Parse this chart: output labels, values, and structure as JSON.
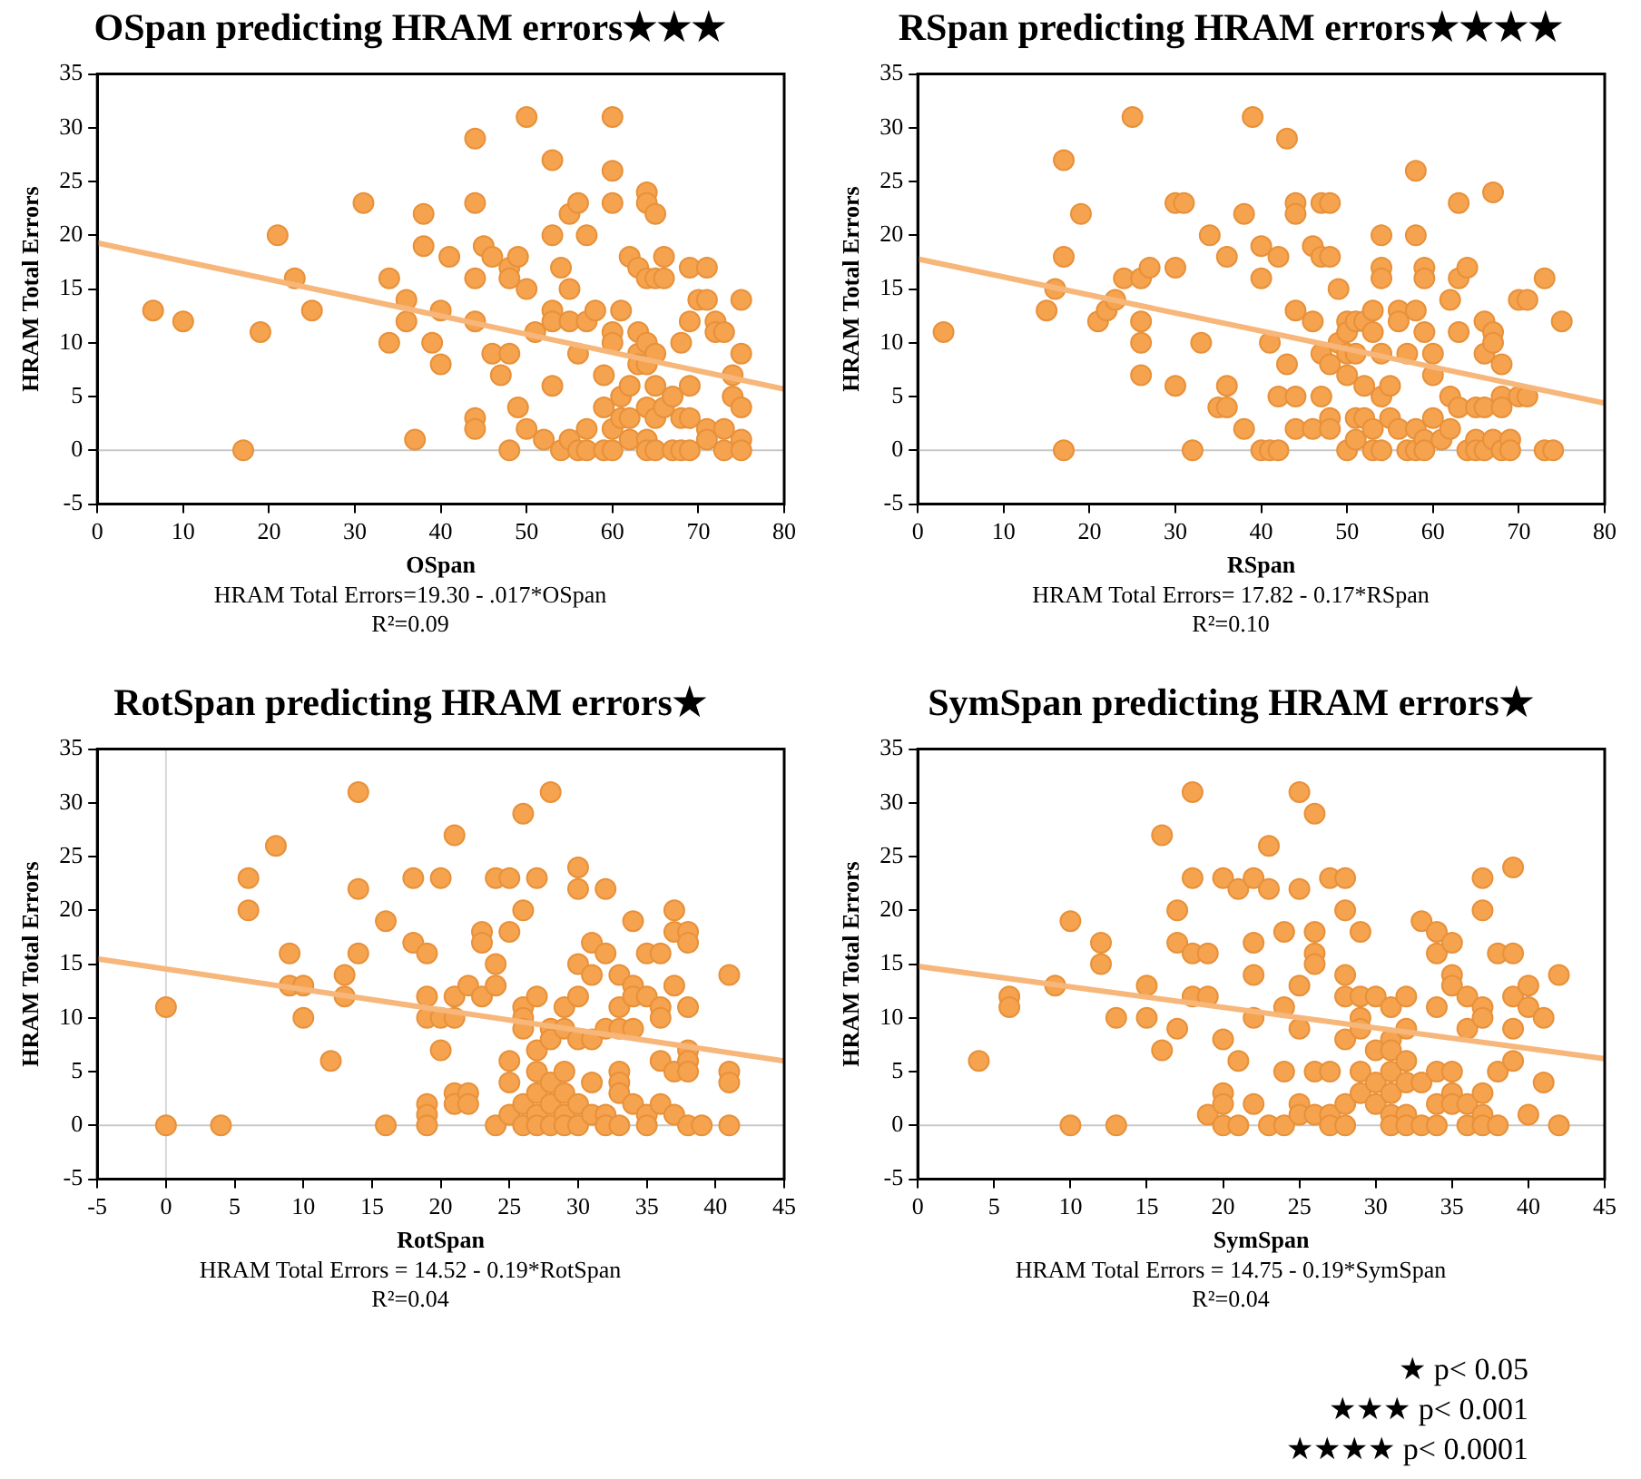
{
  "chart_data": [
    {
      "type": "scatter",
      "title": "OSpan predicting HRAM errors★★★",
      "xlabel": "OSpan",
      "ylabel": "HRAM Total Errors",
      "xlim": [
        0,
        80
      ],
      "xticks": [
        0,
        10,
        20,
        30,
        40,
        50,
        60,
        70,
        80
      ],
      "ylim": [
        -5,
        35
      ],
      "yticks": [
        -5,
        0,
        5,
        10,
        15,
        20,
        25,
        30,
        35
      ],
      "grid": false,
      "ref_lines": [
        {
          "axis": "y",
          "value": 0,
          "color": "#c8c8c8"
        }
      ],
      "annotations": [
        "HRAM Total Errors=19.30 - .017*OSpan",
        "R²=0.09"
      ],
      "series": [
        {
          "color": "#f6a34f",
          "marker": "circle",
          "x": [
            6.5,
            10,
            17,
            19,
            21,
            23,
            25,
            31,
            34,
            34,
            36,
            36,
            37,
            38,
            38,
            39,
            40,
            40,
            41,
            44,
            44,
            44,
            44,
            44,
            44,
            45,
            46,
            46,
            47,
            48,
            48,
            48,
            48,
            49,
            49,
            50,
            50,
            50,
            51,
            52,
            53,
            53,
            53,
            53,
            53,
            54,
            54,
            55,
            55,
            55,
            55,
            56,
            56,
            56,
            57,
            57,
            57,
            57,
            58,
            59,
            59,
            59,
            60,
            60,
            60,
            60,
            60,
            60,
            60,
            61,
            61,
            61,
            62,
            62,
            62,
            62,
            63,
            63,
            63,
            63,
            64,
            64,
            64,
            64,
            64,
            64,
            64,
            64,
            65,
            65,
            65,
            65,
            65,
            65,
            66,
            66,
            66,
            67,
            67,
            68,
            68,
            68,
            69,
            69,
            69,
            69,
            69,
            70,
            71,
            71,
            71,
            71,
            72,
            72,
            73,
            73,
            73,
            74,
            74,
            75,
            75,
            75,
            75,
            75
          ],
          "values": [
            13,
            12,
            0,
            11,
            20,
            16,
            13,
            23,
            16,
            10,
            14,
            12,
            1,
            22,
            19,
            10,
            13,
            8,
            18,
            29,
            23,
            16,
            12,
            3,
            2,
            19,
            18,
            9,
            7,
            17,
            16,
            9,
            0,
            18,
            4,
            31,
            15,
            2,
            11,
            1,
            27,
            20,
            13,
            12,
            6,
            17,
            0,
            22,
            15,
            12,
            1,
            23,
            9,
            0,
            20,
            12,
            2,
            0,
            13,
            7,
            4,
            0,
            31,
            26,
            23,
            11,
            10,
            2,
            0,
            13,
            5,
            3,
            18,
            6,
            3,
            1,
            17,
            11,
            9,
            8,
            24,
            23,
            16,
            10,
            8,
            4,
            1,
            0,
            22,
            16,
            9,
            6,
            3,
            0,
            18,
            16,
            4,
            5,
            0,
            10,
            3,
            0,
            17,
            12,
            6,
            3,
            0,
            14,
            17,
            14,
            2,
            1,
            12,
            11,
            11,
            2,
            0,
            7,
            5,
            14,
            9,
            4,
            1,
            0
          ]
        },
        {
          "type": "line",
          "marker": "none",
          "color": "#f7b67a",
          "x": [
            0,
            80
          ],
          "values": [
            19.3,
            5.7
          ]
        }
      ]
    },
    {
      "type": "scatter",
      "title": "RSpan predicting HRAM errors★★★★",
      "xlabel": "RSpan",
      "ylabel": "HRAM Total Errors",
      "xlim": [
        0,
        80
      ],
      "xticks": [
        0,
        10,
        20,
        30,
        40,
        50,
        60,
        70,
        80
      ],
      "ylim": [
        -5,
        35
      ],
      "yticks": [
        -5,
        0,
        5,
        10,
        15,
        20,
        25,
        30,
        35
      ],
      "grid": false,
      "ref_lines": [
        {
          "axis": "y",
          "value": 0,
          "color": "#c8c8c8"
        }
      ],
      "annotations": [
        "HRAM Total Errors= 17.82 - 0.17*RSpan",
        "R²=0.10"
      ],
      "series": [
        {
          "color": "#f6a34f",
          "marker": "circle",
          "x": [
            3,
            15,
            16,
            17,
            17,
            17,
            19,
            21,
            22,
            23,
            24,
            25,
            26,
            26,
            26,
            26,
            27,
            30,
            30,
            30,
            31,
            32,
            33,
            34,
            35,
            36,
            36,
            36,
            38,
            38,
            39,
            40,
            40,
            40,
            41,
            41,
            42,
            42,
            42,
            43,
            43,
            44,
            44,
            44,
            44,
            44,
            46,
            46,
            46,
            47,
            47,
            47,
            47,
            48,
            48,
            48,
            48,
            48,
            49,
            49,
            50,
            50,
            50,
            50,
            50,
            51,
            51,
            51,
            51,
            52,
            52,
            52,
            53,
            53,
            53,
            53,
            54,
            54,
            54,
            54,
            54,
            54,
            55,
            55,
            56,
            56,
            56,
            57,
            57,
            58,
            58,
            58,
            58,
            58,
            59,
            59,
            59,
            59,
            59,
            60,
            60,
            60,
            61,
            62,
            62,
            62,
            63,
            63,
            63,
            63,
            64,
            64,
            65,
            65,
            65,
            66,
            66,
            66,
            66,
            67,
            67,
            67,
            67,
            68,
            68,
            68,
            68,
            69,
            69,
            70,
            70,
            71,
            71,
            73,
            73,
            74,
            75
          ],
          "values": [
            11,
            13,
            15,
            27,
            18,
            0,
            22,
            12,
            13,
            14,
            16,
            31,
            16,
            12,
            10,
            7,
            17,
            23,
            17,
            6,
            23,
            0,
            10,
            20,
            4,
            18,
            6,
            4,
            22,
            2,
            31,
            19,
            16,
            0,
            10,
            0,
            18,
            5,
            0,
            29,
            8,
            23,
            22,
            13,
            5,
            2,
            19,
            12,
            2,
            23,
            18,
            9,
            5,
            23,
            18,
            8,
            3,
            2,
            15,
            10,
            12,
            11,
            9,
            7,
            0,
            12,
            9,
            3,
            1,
            12,
            6,
            3,
            13,
            11,
            2,
            0,
            20,
            17,
            16,
            9,
            5,
            0,
            6,
            3,
            13,
            12,
            2,
            9,
            0,
            26,
            20,
            13,
            2,
            0,
            17,
            16,
            11,
            1,
            0,
            9,
            7,
            3,
            1,
            14,
            5,
            2,
            23,
            16,
            11,
            4,
            17,
            0,
            4,
            1,
            0,
            12,
            9,
            4,
            0,
            24,
            11,
            10,
            1,
            8,
            5,
            4,
            0,
            1,
            0,
            14,
            5,
            14,
            5,
            16,
            0,
            0,
            12
          ]
        },
        {
          "type": "line",
          "marker": "none",
          "color": "#f7b67a",
          "x": [
            0,
            80
          ],
          "values": [
            17.8,
            4.4
          ]
        }
      ]
    },
    {
      "type": "scatter",
      "title": "RotSpan predicting HRAM errors★",
      "xlabel": "RotSpan",
      "ylabel": "HRAM Total Errors",
      "xlim": [
        -5,
        45
      ],
      "xticks": [
        -5,
        0,
        5,
        10,
        15,
        20,
        25,
        30,
        35,
        40,
        45
      ],
      "ylim": [
        -5,
        35
      ],
      "yticks": [
        -5,
        0,
        5,
        10,
        15,
        20,
        25,
        30,
        35
      ],
      "grid": false,
      "ref_lines": [
        {
          "axis": "y",
          "value": 0,
          "color": "#c8c8c8"
        },
        {
          "axis": "x",
          "value": 0,
          "color": "#d8d8d8"
        }
      ],
      "annotations": [
        "HRAM Total Errors = 14.52 - 0.19*RotSpan",
        "R²=0.04"
      ],
      "series": [
        {
          "color": "#f6a34f",
          "marker": "circle",
          "x": [
            0,
            0,
            4,
            6,
            6,
            8,
            9,
            9,
            10,
            10,
            12,
            13,
            13,
            14,
            14,
            14,
            16,
            16,
            18,
            18,
            19,
            19,
            19,
            19,
            19,
            19,
            20,
            20,
            20,
            21,
            21,
            21,
            21,
            21,
            22,
            22,
            22,
            23,
            23,
            23,
            24,
            24,
            24,
            24,
            25,
            25,
            25,
            25,
            25,
            26,
            26,
            26,
            26,
            26,
            26,
            26,
            27,
            27,
            27,
            27,
            27,
            27,
            27,
            28,
            28,
            28,
            28,
            28,
            28,
            29,
            29,
            29,
            29,
            29,
            29,
            30,
            30,
            30,
            30,
            30,
            30,
            30,
            31,
            31,
            31,
            31,
            31,
            32,
            32,
            32,
            32,
            32,
            33,
            33,
            33,
            33,
            33,
            33,
            33,
            34,
            34,
            34,
            34,
            34,
            35,
            35,
            35,
            35,
            36,
            36,
            36,
            36,
            36,
            37,
            37,
            37,
            37,
            37,
            38,
            38,
            38,
            38,
            38,
            38,
            38,
            39,
            41,
            41,
            41,
            41
          ],
          "values": [
            11,
            0,
            0,
            23,
            20,
            26,
            16,
            13,
            13,
            10,
            6,
            14,
            12,
            31,
            22,
            16,
            19,
            0,
            23,
            17,
            16,
            12,
            10,
            2,
            1,
            0,
            23,
            10,
            7,
            27,
            12,
            10,
            3,
            2,
            13,
            3,
            2,
            18,
            17,
            12,
            23,
            15,
            13,
            0,
            23,
            18,
            6,
            4,
            1,
            29,
            20,
            11,
            10,
            9,
            2,
            0,
            23,
            12,
            7,
            5,
            3,
            1,
            0,
            31,
            9,
            8,
            4,
            2,
            0,
            11,
            9,
            5,
            3,
            1,
            0,
            24,
            22,
            15,
            12,
            8,
            2,
            0,
            17,
            14,
            8,
            4,
            1,
            22,
            16,
            9,
            1,
            0,
            14,
            11,
            9,
            5,
            4,
            3,
            0,
            19,
            13,
            12,
            9,
            2,
            16,
            12,
            1,
            0,
            16,
            11,
            10,
            6,
            2,
            20,
            18,
            13,
            5,
            1,
            18,
            17,
            11,
            7,
            6,
            5,
            0,
            0,
            14,
            5,
            4,
            0
          ]
        },
        {
          "type": "line",
          "marker": "none",
          "color": "#f7b67a",
          "x": [
            -5,
            45
          ],
          "values": [
            15.5,
            6.0
          ]
        }
      ]
    },
    {
      "type": "scatter",
      "title": "SymSpan predicting HRAM errors★",
      "xlabel": "SymSpan",
      "ylabel": "HRAM Total Errors",
      "xlim": [
        0,
        45
      ],
      "xticks": [
        0,
        5,
        10,
        15,
        20,
        25,
        30,
        35,
        40,
        45
      ],
      "ylim": [
        -5,
        35
      ],
      "yticks": [
        -5,
        0,
        5,
        10,
        15,
        20,
        25,
        30,
        35
      ],
      "grid": false,
      "ref_lines": [
        {
          "axis": "y",
          "value": 0,
          "color": "#c8c8c8"
        }
      ],
      "annotations": [
        "HRAM Total Errors = 14.75 - 0.19*SymSpan",
        "R²=0.04",
        "★ p< 0.05",
        "★★★ p< 0.001",
        "★★★★ p< 0.0001"
      ],
      "series": [
        {
          "color": "#f6a34f",
          "marker": "circle",
          "x": [
            4,
            6,
            6,
            9,
            10,
            10,
            12,
            12,
            13,
            13,
            15,
            15,
            16,
            16,
            17,
            17,
            17,
            18,
            18,
            18,
            18,
            19,
            19,
            19,
            20,
            20,
            20,
            20,
            20,
            21,
            21,
            21,
            22,
            22,
            22,
            22,
            22,
            23,
            23,
            23,
            24,
            24,
            24,
            24,
            25,
            25,
            25,
            25,
            25,
            25,
            26,
            26,
            26,
            26,
            26,
            26,
            27,
            27,
            27,
            27,
            28,
            28,
            28,
            28,
            28,
            28,
            28,
            29,
            29,
            29,
            29,
            29,
            29,
            30,
            30,
            30,
            30,
            31,
            31,
            31,
            31,
            31,
            31,
            31,
            32,
            32,
            32,
            32,
            32,
            32,
            33,
            33,
            33,
            34,
            34,
            34,
            34,
            34,
            34,
            35,
            35,
            35,
            35,
            35,
            35,
            36,
            36,
            36,
            36,
            37,
            37,
            37,
            37,
            37,
            37,
            37,
            38,
            38,
            38,
            39,
            39,
            39,
            39,
            39,
            40,
            40,
            40,
            41,
            41,
            42,
            42
          ],
          "values": [
            6,
            12,
            11,
            13,
            19,
            0,
            17,
            15,
            10,
            0,
            13,
            10,
            27,
            7,
            20,
            17,
            9,
            31,
            23,
            16,
            12,
            16,
            12,
            1,
            23,
            8,
            3,
            2,
            0,
            22,
            6,
            0,
            23,
            17,
            14,
            10,
            2,
            26,
            22,
            0,
            18,
            11,
            5,
            0,
            31,
            22,
            13,
            9,
            2,
            1,
            29,
            18,
            16,
            15,
            5,
            1,
            23,
            5,
            1,
            0,
            23,
            20,
            14,
            12,
            8,
            2,
            0,
            18,
            12,
            10,
            9,
            5,
            3,
            12,
            7,
            4,
            2,
            11,
            8,
            7,
            5,
            3,
            1,
            0,
            12,
            9,
            6,
            4,
            1,
            0,
            19,
            4,
            0,
            18,
            16,
            11,
            5,
            2,
            0,
            17,
            14,
            13,
            5,
            3,
            2,
            12,
            9,
            2,
            0,
            23,
            20,
            11,
            10,
            3,
            1,
            0,
            16,
            5,
            0,
            24,
            16,
            12,
            9,
            6,
            13,
            11,
            1,
            10,
            4,
            14,
            0
          ]
        },
        {
          "type": "line",
          "marker": "none",
          "color": "#f7b67a",
          "x": [
            0,
            45
          ],
          "values": [
            14.8,
            6.2
          ]
        }
      ]
    }
  ]
}
